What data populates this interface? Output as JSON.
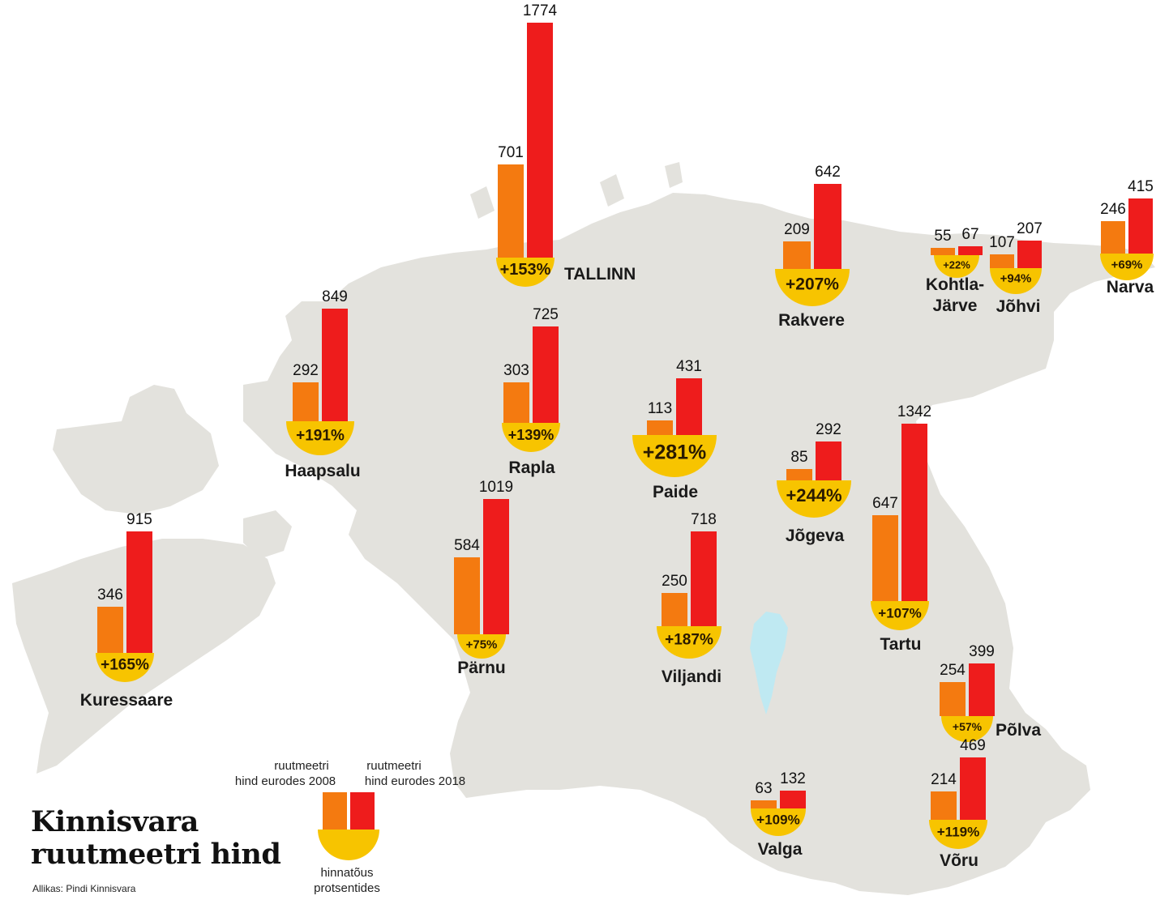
{
  "title": {
    "line1": "Kinnisvara",
    "line2": "ruutmeetri hind"
  },
  "source": "Allikas: Pindi Kinnisvara",
  "legend": {
    "price_2008_line1": "ruutmeetri",
    "price_2008_line2": "hind eurodes 2008",
    "price_2018_line1": "ruutmeetri",
    "price_2018_line2": "hind eurodes 2018",
    "change_line1": "hinnatõus",
    "change_line2": "protsentides"
  },
  "colors": {
    "price_2008": "#f47a10",
    "price_2018": "#ee1c1c",
    "change": "#f7c400",
    "land": "#e3e2dd",
    "lake": "#bfe9f2"
  },
  "chart_data": {
    "type": "bar",
    "series": [
      {
        "name": "ruutmeetri hind eurodes 2008",
        "key": "p2008"
      },
      {
        "name": "ruutmeetri hind eurodes 2018",
        "key": "p2018"
      }
    ],
    "cities": [
      {
        "name": "TALLINN",
        "p2008": 701,
        "p2018": 1774,
        "change": "+153%"
      },
      {
        "name": "Rakvere",
        "p2008": 209,
        "p2018": 642,
        "change": "+207%"
      },
      {
        "name": "Kohtla-",
        "name2": "Järve",
        "p2008": 55,
        "p2018": 67,
        "change": "+22%"
      },
      {
        "name": "Jõhvi",
        "p2008": 107,
        "p2018": 207,
        "change": "+94%"
      },
      {
        "name": "Narva",
        "p2008": 246,
        "p2018": 415,
        "change": "+69%"
      },
      {
        "name": "Haapsalu",
        "p2008": 292,
        "p2018": 849,
        "change": "+191%"
      },
      {
        "name": "Rapla",
        "p2008": 303,
        "p2018": 725,
        "change": "+139%"
      },
      {
        "name": "Paide",
        "p2008": 113,
        "p2018": 431,
        "change": "+281%"
      },
      {
        "name": "Jõgeva",
        "p2008": 85,
        "p2018": 292,
        "change": "+244%"
      },
      {
        "name": "Tartu",
        "p2008": 647,
        "p2018": 1342,
        "change": "+107%"
      },
      {
        "name": "Kuressaare",
        "p2008": 346,
        "p2018": 915,
        "change": "+165%"
      },
      {
        "name": "Pärnu",
        "p2008": 584,
        "p2018": 1019,
        "change": "+75%"
      },
      {
        "name": "Viljandi",
        "p2008": 250,
        "p2018": 718,
        "change": "+187%"
      },
      {
        "name": "Põlva",
        "p2008": 254,
        "p2018": 399,
        "change": "+57%"
      },
      {
        "name": "Valga",
        "p2008": 63,
        "p2018": 132,
        "change": "+109%"
      },
      {
        "name": "Võru",
        "p2008": 214,
        "p2018": 469,
        "change": "+119%"
      }
    ]
  }
}
